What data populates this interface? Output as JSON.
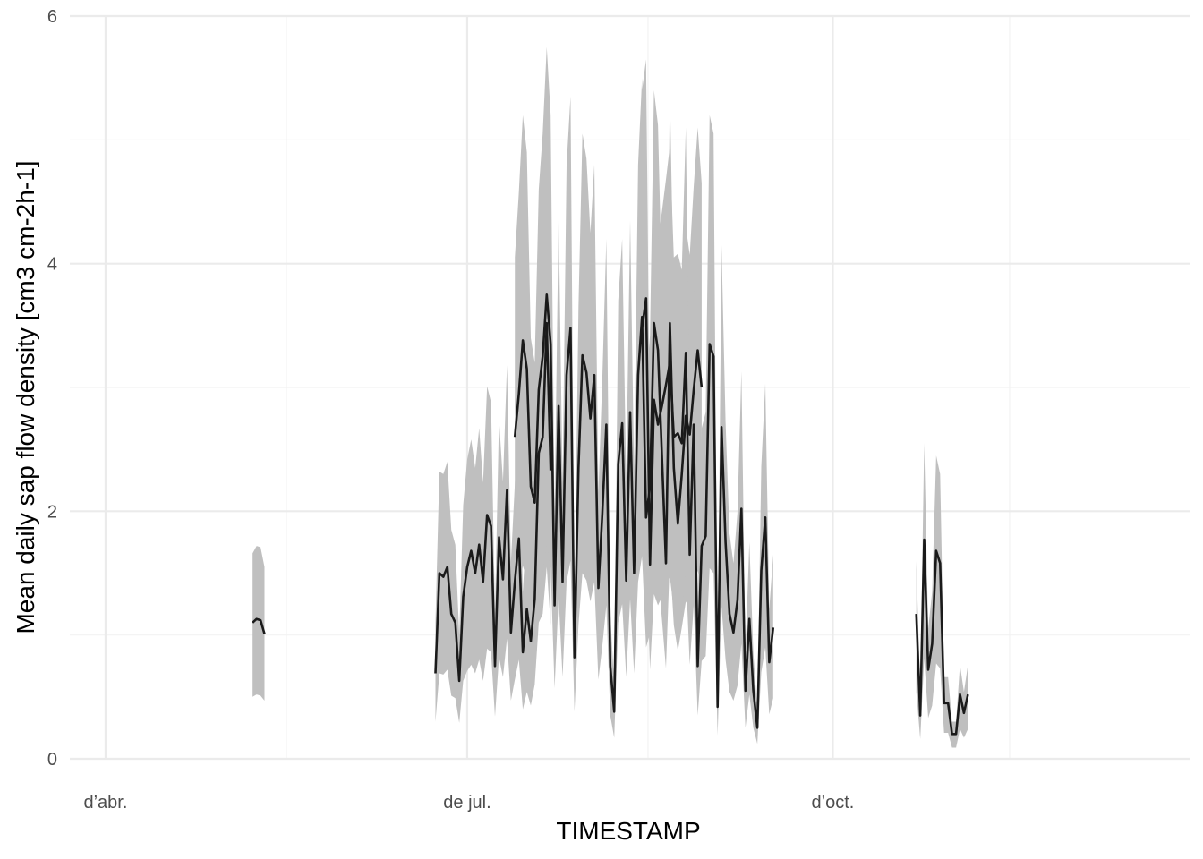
{
  "chart_data": {
    "type": "line",
    "xlabel": "TIMESTAMP",
    "ylabel": "Mean daily sap flow density [cm3 cm-2h-1]",
    "ylim": [
      0,
      6
    ],
    "xlim": [
      "2019-03-23",
      "2019-12-30"
    ],
    "x_ticks": [
      {
        "date": "2019-04-01",
        "label": "d’abr."
      },
      {
        "date": "2019-07-01",
        "label": "de jul."
      },
      {
        "date": "2019-10-01",
        "label": "d’oct."
      }
    ],
    "y_ticks": [
      0,
      2,
      4,
      6
    ],
    "grid": true,
    "legend": "none",
    "colors": {
      "line": "#1a1a1a",
      "ribbon": "#bfbfbf",
      "grid": "#ebebeb"
    },
    "series": [
      {
        "segments": [
          {
            "start": "2019-05-08",
            "values": [
              1.1,
              1.13,
              1.12,
              1.01
            ],
            "lower": [
              0.5,
              0.52,
              0.51,
              0.47
            ],
            "upper": [
              1.66,
              1.72,
              1.71,
              1.55
            ]
          },
          {
            "start": "2019-06-23",
            "values": [
              0.69,
              1.5,
              1.47,
              1.55,
              1.17,
              1.1,
              0.63,
              1.31,
              1.55,
              1.68,
              1.5,
              1.73,
              1.43,
              1.97,
              1.88,
              0.75,
              1.79,
              1.45,
              2.17,
              1.02,
              1.43,
              1.78,
              0.86,
              1.21,
              0.95,
              1.29,
              2.47,
              2.6,
              3.52,
              2.33
            ],
            "lower": [
              0.3,
              0.69,
              0.68,
              0.72,
              0.51,
              0.49,
              0.29,
              0.63,
              0.71,
              0.76,
              0.69,
              0.8,
              0.63,
              0.89,
              0.86,
              0.34,
              0.82,
              0.66,
              0.97,
              0.47,
              0.64,
              0.8,
              0.4,
              0.54,
              0.43,
              0.6,
              1.1,
              1.17,
              1.55,
              1.08
            ],
            "upper": [
              1.1,
              2.32,
              2.3,
              2.4,
              1.85,
              1.73,
              1.0,
              2.05,
              2.42,
              2.58,
              2.35,
              2.67,
              2.23,
              3.01,
              2.88,
              1.17,
              2.75,
              2.24,
              3.18,
              1.59,
              2.22,
              2.72,
              1.35,
              1.9,
              1.5,
              2.0,
              3.76,
              3.94,
              5.4,
              3.55
            ]
          },
          {
            "start": "2019-07-13",
            "values": [
              2.6,
              2.95,
              3.38,
              3.15,
              2.2,
              2.07,
              2.98,
              3.25,
              3.75,
              3.35,
              1.24,
              2.85,
              1.43,
              3.1,
              3.48,
              0.82,
              2.35,
              3.26,
              3.12,
              2.75,
              3.1,
              1.38,
              1.98,
              2.7,
              0.75,
              0.38,
              2.38,
              2.71,
              1.44,
              2.8,
              1.5,
              3.1,
              3.57,
              1.95,
              2.2,
              3.52,
              3.3,
              2.45,
              1.58,
              3.52,
              2.35,
              1.9,
              2.3,
              2.77,
              2.62,
              2.98,
              3.3,
              3.0
            ],
            "lower": [
              1.2,
              1.36,
              1.56,
              1.45,
              1.01,
              0.95,
              1.37,
              1.5,
              1.73,
              1.54,
              0.57,
              1.31,
              0.66,
              1.43,
              1.6,
              0.38,
              1.08,
              1.5,
              1.44,
              1.27,
              1.43,
              0.64,
              0.91,
              1.24,
              0.35,
              0.17,
              1.1,
              1.25,
              0.66,
              1.29,
              0.69,
              1.43,
              1.64,
              0.9,
              1.01,
              1.62,
              1.52,
              1.13,
              0.73,
              1.62,
              1.08,
              0.87,
              1.06,
              1.27,
              1.21,
              1.37,
              1.52,
              1.38
            ],
            "upper": [
              4.05,
              4.58,
              5.2,
              4.9,
              3.4,
              3.2,
              4.6,
              5.05,
              5.75,
              5.2,
              1.95,
              4.4,
              2.22,
              4.8,
              5.35,
              1.28,
              3.65,
              5.05,
              4.85,
              4.25,
              4.8,
              2.15,
              3.07,
              4.2,
              1.17,
              0.6,
              3.7,
              4.2,
              2.24,
              4.35,
              2.33,
              4.8,
              5.5,
              3.03,
              3.42,
              5.4,
              5.12,
              3.8,
              2.46,
              5.4,
              3.65,
              2.95,
              3.57,
              4.3,
              4.07,
              4.62,
              5.1,
              4.65
            ]
          },
          {
            "start": "2019-08-14",
            "values": [
              3.48,
              3.72,
              1.57,
              2.9,
              2.7,
              2.85,
              3.02,
              3.2,
              2.6,
              2.63,
              2.55,
              3.28,
              1.65,
              2.7,
              0.75,
              1.72,
              1.8,
              3.35,
              3.25,
              0.42,
              2.68,
              1.75,
              1.17,
              1.02,
              1.28,
              2.02,
              0.55,
              1.13,
              0.55,
              0.25,
              1.52,
              1.95,
              0.78,
              1.06
            ],
            "lower": [
              1.6,
              1.71,
              0.72,
              1.33,
              1.24,
              1.31,
              1.39,
              1.47,
              1.2,
              1.21,
              1.17,
              1.51,
              0.76,
              1.24,
              0.35,
              0.79,
              0.83,
              1.54,
              1.5,
              0.19,
              1.23,
              0.8,
              0.54,
              0.47,
              0.59,
              0.93,
              0.25,
              0.52,
              0.25,
              0.12,
              0.7,
              0.9,
              0.36,
              0.49
            ],
            "upper": [
              5.4,
              5.65,
              2.45,
              4.5,
              4.2,
              4.42,
              4.68,
              4.95,
              4.05,
              4.08,
              3.95,
              5.1,
              2.57,
              4.2,
              1.17,
              2.67,
              2.8,
              5.2,
              5.05,
              0.66,
              4.15,
              2.72,
              1.82,
              1.58,
              1.99,
              3.13,
              0.86,
              1.75,
              0.86,
              0.39,
              2.36,
              3.03,
              1.21,
              1.65
            ]
          },
          {
            "start": "2019-10-22",
            "values": [
              1.17,
              0.35,
              1.77,
              0.72,
              0.93,
              1.68,
              1.58,
              0.45,
              0.45,
              0.2,
              0.2,
              0.52,
              0.37,
              0.52
            ],
            "lower": [
              0.54,
              0.16,
              0.81,
              0.33,
              0.43,
              0.77,
              0.73,
              0.21,
              0.21,
              0.09,
              0.09,
              0.24,
              0.17,
              0.24
            ],
            "upper": [
              1.6,
              0.55,
              2.55,
              1.05,
              1.35,
              2.45,
              2.3,
              0.66,
              0.66,
              0.3,
              0.3,
              0.76,
              0.54,
              0.76
            ]
          }
        ]
      }
    ]
  }
}
